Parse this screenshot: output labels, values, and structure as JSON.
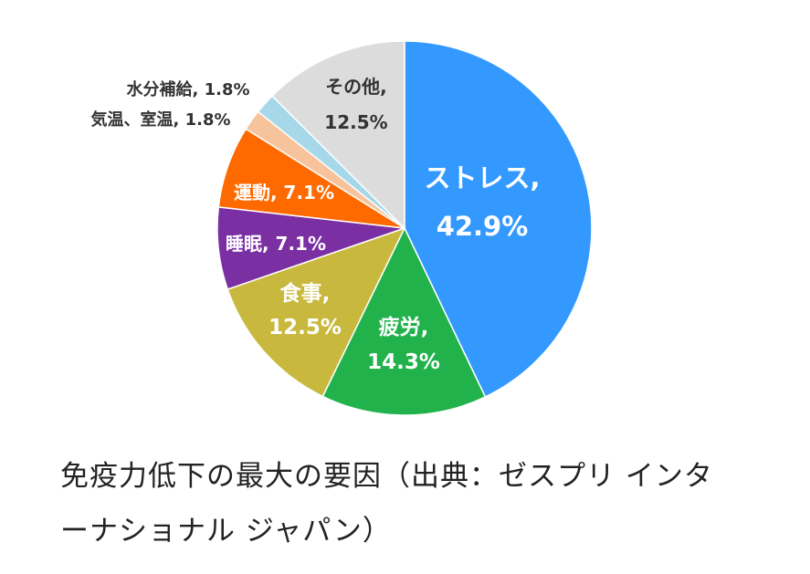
{
  "chart_data": {
    "type": "pie",
    "start_angle_deg": 0,
    "direction": "clockwise",
    "slices": [
      {
        "name": "ストレス",
        "value": 42.9,
        "label_line1": "ストレス,",
        "label_line2": "42.9%",
        "color": "#3399ff",
        "text_color": "#ffffff",
        "label_pos": "inside"
      },
      {
        "name": "疲労",
        "value": 14.3,
        "label_line1": "疲労,",
        "label_line2": "14.3%",
        "color": "#22b24c",
        "text_color": "#ffffff",
        "label_pos": "inside"
      },
      {
        "name": "食事",
        "value": 12.5,
        "label_line1": "食事,",
        "label_line2": "12.5%",
        "color": "#c8b93e",
        "text_color": "#ffffff",
        "label_pos": "inside"
      },
      {
        "name": "睡眠",
        "value": 7.1,
        "label_line1": "睡眠, 7.1%",
        "label_line2": "",
        "color": "#7a2fa3",
        "text_color": "#ffffff",
        "label_pos": "inside"
      },
      {
        "name": "運動",
        "value": 7.1,
        "label_line1": "運動, 7.1%",
        "label_line2": "",
        "color": "#ff6a00",
        "text_color": "#ffffff",
        "label_pos": "inside"
      },
      {
        "name": "気温、室温",
        "value": 1.8,
        "label_line1": "気温、室温, 1.8%",
        "label_line2": "",
        "color": "#f7c39a",
        "text_color": "#333333",
        "label_pos": "outside"
      },
      {
        "name": "水分補給",
        "value": 1.8,
        "label_line1": "水分補給, 1.8%",
        "label_line2": "",
        "color": "#a6d8ea",
        "text_color": "#333333",
        "label_pos": "outside"
      },
      {
        "name": "その他",
        "value": 12.5,
        "label_line1": "その他,",
        "label_line2": "12.5%",
        "color": "#dcdcdc",
        "text_color": "#333333",
        "label_pos": "inside"
      }
    ]
  },
  "caption": {
    "line1": "免疫力低下の最大の要因（出典：ゼスプリ インタ",
    "line2": "ーナショナル ジャパン）"
  }
}
